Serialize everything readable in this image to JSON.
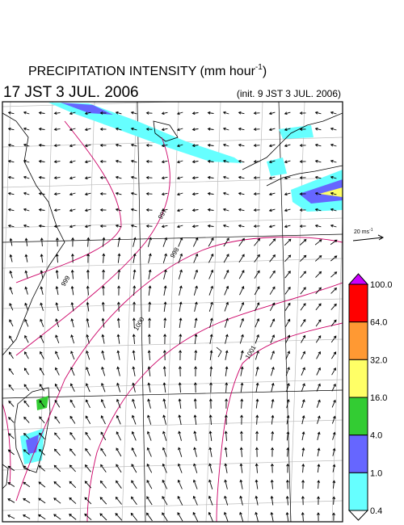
{
  "title": {
    "text": "PRECIPITATION INTENSITY (mm hour",
    "exponent": "-1",
    "close": ")"
  },
  "valid_time": "17 JST 3 JUL. 2006",
  "init_time": "(init. 9 JST 3 JUL. 2006)",
  "wind_scale": {
    "label": "20 ms",
    "exponent": "-1"
  },
  "colorbar": {
    "labels": [
      "100.0",
      "64.0",
      "32.0",
      "16.0",
      "4.0",
      "1.0",
      "0.4"
    ],
    "colors": [
      "#cc00ff",
      "#ff0000",
      "#ff9933",
      "#ffff66",
      "#33cc33",
      "#6666ff",
      "#66ffff",
      "#ffffff"
    ]
  },
  "contour_labels": [
    "997",
    "998",
    "999",
    "1000",
    "1001"
  ]
}
